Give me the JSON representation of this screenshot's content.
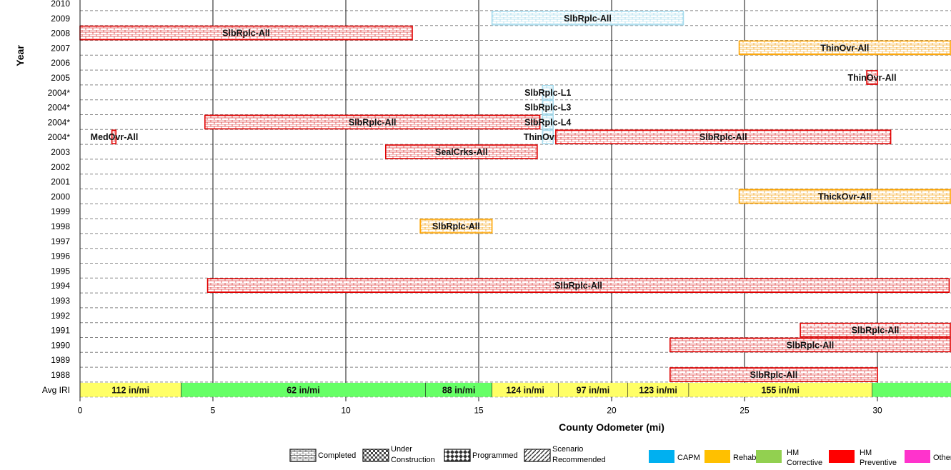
{
  "chart_data": {
    "type": "bar",
    "subtype": "gantt",
    "ylabel": "Year",
    "xlabel": "County Odometer (mi)",
    "xlim": [
      0,
      32.8
    ],
    "x_ticks": [
      0,
      5,
      10,
      15,
      20,
      25,
      30
    ],
    "grid": true,
    "row_labels": [
      "2010",
      "2009",
      "2008",
      "2007",
      "2006",
      "2005",
      "2004*",
      "2004*",
      "2004*",
      "2004*",
      "2003",
      "2002",
      "2001",
      "2000",
      "1999",
      "1998",
      "1997",
      "1996",
      "1995",
      "1994",
      "1993",
      "1992",
      "1991",
      "1990",
      "1989",
      "1988",
      "Avg IRI"
    ],
    "projects": [
      {
        "row": 1,
        "start": 15.5,
        "end": 22.7,
        "label": "SlbRplc-All",
        "category": "CAPM",
        "status": "Completed"
      },
      {
        "row": 2,
        "start": 0.0,
        "end": 12.5,
        "label": "SlbRplc-All",
        "category": "HM Preventive",
        "status": "Completed"
      },
      {
        "row": 3,
        "start": 24.8,
        "end": 32.8,
        "label": "ThinOvr-All",
        "category": "Rehab",
        "status": "Completed"
      },
      {
        "row": 5,
        "start": 29.6,
        "end": 30.0,
        "label": "ThinOvr-All",
        "category": "HM Preventive",
        "status": "Completed"
      },
      {
        "row": 6,
        "start": 17.4,
        "end": 17.8,
        "label": "SlbRplc-L1",
        "category": "CAPM",
        "status": "Completed"
      },
      {
        "row": 7,
        "start": 17.4,
        "end": 17.8,
        "label": "SlbRplc-L3",
        "category": "CAPM",
        "status": "Completed"
      },
      {
        "row": 8,
        "start": 4.7,
        "end": 17.3,
        "label": "SlbRplc-All",
        "category": "HM Preventive",
        "status": "Completed"
      },
      {
        "row": 8,
        "start": 17.4,
        "end": 17.8,
        "label": "SlbRplc-L4",
        "category": "CAPM",
        "status": "Completed"
      },
      {
        "row": 9,
        "start": 1.2,
        "end": 1.35,
        "label": "MedOvr-All",
        "category": "HM Preventive",
        "status": "Completed"
      },
      {
        "row": 9,
        "start": 17.4,
        "end": 17.8,
        "label": "ThinOvr-All",
        "category": "CAPM",
        "status": "Completed"
      },
      {
        "row": 9,
        "start": 17.9,
        "end": 30.5,
        "label": "SlbRplc-All",
        "category": "HM Preventive",
        "status": "Completed"
      },
      {
        "row": 10,
        "start": 11.5,
        "end": 17.2,
        "label": "SealCrks-All",
        "category": "HM Preventive",
        "status": "Completed"
      },
      {
        "row": 13,
        "start": 24.8,
        "end": 32.8,
        "label": "ThickOvr-All",
        "category": "Rehab",
        "status": "Completed"
      },
      {
        "row": 15,
        "start": 12.8,
        "end": 15.5,
        "label": "SlbRplc-All",
        "category": "Rehab",
        "status": "Completed"
      },
      {
        "row": 19,
        "start": 4.8,
        "end": 32.7,
        "label": "SlbRplc-All",
        "category": "HM Preventive",
        "status": "Completed"
      },
      {
        "row": 22,
        "start": 27.1,
        "end": 32.8,
        "label": "SlbRplc-All",
        "category": "HM Preventive",
        "status": "Completed"
      },
      {
        "row": 23,
        "start": 22.2,
        "end": 32.8,
        "label": "SlbRplc-All",
        "category": "HM Preventive",
        "status": "Completed"
      },
      {
        "row": 25,
        "start": 22.2,
        "end": 30.0,
        "label": "SlbRplc-All",
        "category": "HM Preventive",
        "status": "Completed"
      }
    ],
    "avg_iri": [
      {
        "start": 0.0,
        "end": 3.8,
        "value": 112,
        "label": "112 in/mi",
        "color": "#ffff66"
      },
      {
        "start": 3.8,
        "end": 13.0,
        "value": 62,
        "label": "62 in/mi",
        "color": "#66ff66"
      },
      {
        "start": 13.0,
        "end": 15.5,
        "value": 88,
        "label": "88 in/mi",
        "color": "#66ff66"
      },
      {
        "start": 15.5,
        "end": 18.0,
        "value": 124,
        "label": "124 in/mi",
        "color": "#ffff66"
      },
      {
        "start": 18.0,
        "end": 20.6,
        "value": 97,
        "label": "97 in/mi",
        "color": "#ffff66"
      },
      {
        "start": 20.6,
        "end": 22.9,
        "value": 123,
        "label": "123 in/mi",
        "color": "#ffff66"
      },
      {
        "start": 22.9,
        "end": 29.8,
        "value": 155,
        "label": "155 in/mi",
        "color": "#ffff66"
      },
      {
        "start": 29.8,
        "end": 32.8,
        "value": null,
        "label": "",
        "color": "#66ff66"
      }
    ],
    "legend_status": [
      {
        "name": "Completed",
        "pattern": "brick"
      },
      {
        "name": "Under Construction",
        "pattern": "check"
      },
      {
        "name": "Programmed",
        "pattern": "diamond"
      },
      {
        "name": "Scenario Recommended",
        "pattern": "diagonal"
      }
    ],
    "legend_category": [
      {
        "name": "CAPM",
        "color": "#00b0f0"
      },
      {
        "name": "Rehab",
        "color": "#ffc000"
      },
      {
        "name": "HM Corrective",
        "color": "#92d050"
      },
      {
        "name": "HM Preventive",
        "color": "#ff0000"
      },
      {
        "name": "Other",
        "color": "#ff33cc"
      }
    ],
    "category_colors": {
      "CAPM": "#a8dcee",
      "Rehab": "#ffa500",
      "HM Preventive": "#e00000"
    }
  }
}
